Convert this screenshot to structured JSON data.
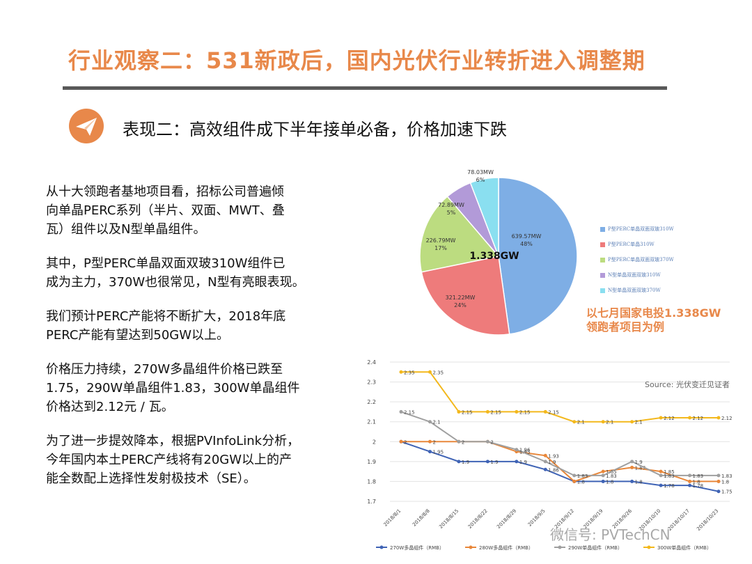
{
  "header": {
    "title": "行业观察二：531新政后，国内光伏行业转折进入调整期",
    "subtitle": "表现二：高效组件成下半年接单必备，价格加速下跌",
    "subtitle_icon": "paper-plane-icon",
    "accent_color": "#e8884a"
  },
  "body": {
    "paragraphs": [
      [
        "从十大领跑者基地项目看，招标公司普遍倾",
        "向单晶PERC系列（半片、双面、MWT、叠",
        "瓦）组件以及N型单晶组件。"
      ],
      [
        "其中，P型PERC单晶双面双玻310W组件已",
        "成为主力，370W也很常见，N型有亮眼表现。"
      ],
      [
        "我们预计PERC产能将不断扩大，2018年底",
        "PERC产能有望达到50GW以上。"
      ],
      [
        "价格压力持续，270W多晶组件价格已跌至",
        "1.75，290W单晶组件1.83，300W单晶组件",
        "价格达到2.12元 / 瓦。"
      ],
      [
        "为了进一步提效降本，根据PVInfoLink分析，",
        "今年国内本土PERC产线将有20GW以上的产",
        "能全数配上选择性发射极技术（SE）。"
      ]
    ]
  },
  "pie_note": [
    "以七月国家电投1.338GW",
    "领跑者项目为例"
  ],
  "watermark": "微信号: PVTechCN",
  "chart_data": [
    {
      "type": "pie",
      "center_label": "1.338GW",
      "legend_position": "right",
      "slices": [
        {
          "name": "P型PERC单晶双面双玻310W",
          "value_label": "639.57MW",
          "value": 639.57,
          "pct": "48%",
          "color": "#7eaee5"
        },
        {
          "name": "P型PERC单晶310W",
          "value_label": "321.22MW",
          "value": 321.22,
          "pct": "24%",
          "color": "#ee7b7b"
        },
        {
          "name": "P型PERC单晶双面双玻370W",
          "value_label": "226.79MW",
          "value": 226.79,
          "pct": "17%",
          "color": "#bcdc80"
        },
        {
          "name": "N型单晶双面双玻310W",
          "value_label": "72.89MW",
          "value": 72.89,
          "pct": "5%",
          "color": "#b29ad8"
        },
        {
          "name": "N型单晶双面双玻370W",
          "value_label": "78.03MW",
          "value": 78.03,
          "pct": "6%",
          "color": "#8adff0"
        }
      ]
    },
    {
      "type": "line",
      "source": "Source: 光伏变迁见证者",
      "ylim": [
        1.7,
        2.4
      ],
      "y_ticks": [
        "1.7",
        "1.8",
        "1.9",
        "2",
        "2.1",
        "2.2",
        "2.3",
        "2.4"
      ],
      "grid": true,
      "legend_position": "bottom",
      "x": [
        "2018/8/1",
        "2018/8/8",
        "2018/8/15",
        "2018/8/22",
        "2018/8/29",
        "2018/9/5",
        "2018/9/12",
        "2018/9/19",
        "2018/9/26",
        "2018/10/10",
        "2018/10/17",
        "2018/10/23"
      ],
      "series": [
        {
          "name": "270W多晶组件（RMB）",
          "color": "#3f63b5",
          "values": [
            2,
            1.95,
            1.9,
            1.9,
            1.9,
            1.86,
            1.8,
            1.8,
            1.8,
            1.78,
            1.78,
            1.75
          ],
          "labels": [
            "",
            "1.95",
            "1.9",
            "1.9",
            "1.9",
            "1.86",
            "1.8",
            "1.8",
            "1.8",
            "1.78",
            "1.78",
            "1.75"
          ]
        },
        {
          "name": "280W多晶组件（RMB）",
          "color": "#e8873a",
          "values": [
            2,
            2,
            2,
            2,
            1.95,
            1.93,
            1.8,
            1.85,
            1.87,
            1.85,
            1.8,
            1.8
          ],
          "labels": [
            "2",
            "2",
            "",
            "",
            "1.95",
            "1.93",
            "",
            "1.85",
            "1.87",
            "1.85",
            "1.8",
            "1.8"
          ]
        },
        {
          "name": "290W单晶组件（RMB）",
          "color": "#9f9f9f",
          "values": [
            2.15,
            2.1,
            2,
            2,
            1.96,
            1.9,
            1.83,
            1.83,
            1.9,
            1.83,
            1.83,
            1.83
          ],
          "labels": [
            "2.15",
            "2.1",
            "2",
            "2",
            "1.96",
            "1.9",
            "1.83",
            "1.83",
            "1.9",
            "1.83",
            "1.83",
            "1.83"
          ]
        },
        {
          "name": "300W单晶组件（RMB）",
          "color": "#f3b81c",
          "values": [
            2.35,
            2.35,
            2.15,
            2.15,
            2.15,
            2.15,
            2.1,
            2.1,
            2.1,
            2.12,
            2.12,
            2.12
          ],
          "labels": [
            "2.35",
            "2.35",
            "2.15",
            "2.15",
            "2.15",
            "2.15",
            "2.1",
            "2.1",
            "2.1",
            "2.12",
            "2.12",
            "2.12"
          ]
        }
      ]
    }
  ]
}
